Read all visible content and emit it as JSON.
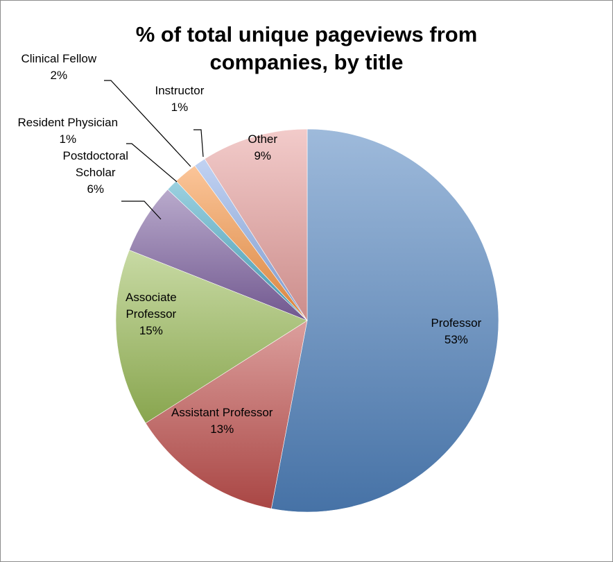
{
  "chart_data": {
    "type": "pie",
    "title": "% of total unique pageviews from companies, by title",
    "title_lines": [
      "% of total unique pageviews from",
      "companies, by title"
    ],
    "slices": [
      {
        "name": "Professor",
        "value": 53,
        "label": "53%",
        "color": "#4f81bd",
        "label_lines": [
          "Professor",
          "53%"
        ]
      },
      {
        "name": "Assistant Professor",
        "value": 13,
        "label": "13%",
        "color": "#c0504d",
        "label_lines": [
          "Assistant Professor",
          "13%"
        ]
      },
      {
        "name": "Associate Professor",
        "value": 15,
        "label": "15%",
        "color": "#9bbb59",
        "label_lines": [
          "Associate",
          "Professor",
          "15%"
        ]
      },
      {
        "name": "Postdoctoral Scholar",
        "value": 6,
        "label": "6%",
        "color": "#8064a2",
        "label_lines": [
          "Postdoctoral",
          "Scholar",
          "6%"
        ]
      },
      {
        "name": "Resident Physician",
        "value": 1,
        "label": "1%",
        "color": "#4bacc6",
        "label_lines": [
          "Resident Physician",
          "1%"
        ]
      },
      {
        "name": "Clinical Fellow",
        "value": 2,
        "label": "2%",
        "color": "#f79646",
        "label_lines": [
          "Clinical Fellow",
          "2%"
        ]
      },
      {
        "name": "Instructor",
        "value": 1,
        "label": "1%",
        "color": "#8eaee8",
        "label_lines": [
          "Instructor",
          "1%"
        ]
      },
      {
        "name": "Other",
        "value": 9,
        "label": "9%",
        "color": "#e8a09e",
        "label_lines": [
          "Other",
          "9%"
        ]
      }
    ],
    "legend": "none",
    "data_labels": "category name and percentage"
  }
}
